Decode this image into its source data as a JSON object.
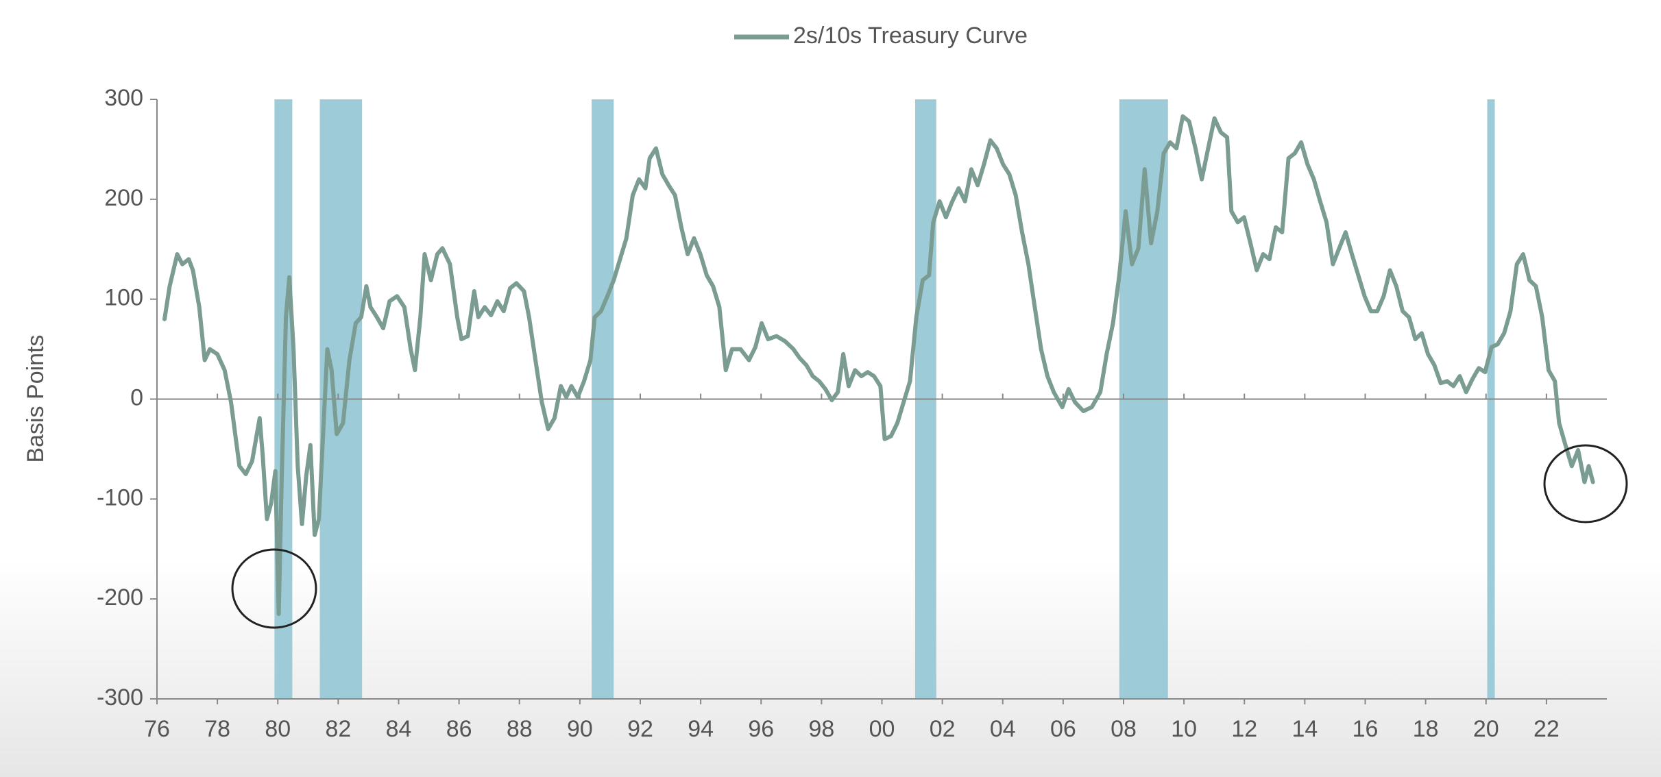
{
  "chart_data": {
    "type": "line",
    "y_label": "Basis Points",
    "xlim": [
      1976,
      2024
    ],
    "ylim": [
      -300,
      300
    ],
    "xticks": [
      {
        "value": 1976,
        "label": "76"
      },
      {
        "value": 1978,
        "label": "78"
      },
      {
        "value": 1980,
        "label": "80"
      },
      {
        "value": 1982,
        "label": "82"
      },
      {
        "value": 1984,
        "label": "84"
      },
      {
        "value": 1986,
        "label": "86"
      },
      {
        "value": 1988,
        "label": "88"
      },
      {
        "value": 1990,
        "label": "90"
      },
      {
        "value": 1992,
        "label": "92"
      },
      {
        "value": 1994,
        "label": "94"
      },
      {
        "value": 1996,
        "label": "96"
      },
      {
        "value": 1998,
        "label": "98"
      },
      {
        "value": 2000,
        "label": "00"
      },
      {
        "value": 2002,
        "label": "02"
      },
      {
        "value": 2004,
        "label": "04"
      },
      {
        "value": 2006,
        "label": "06"
      },
      {
        "value": 2008,
        "label": "08"
      },
      {
        "value": 2010,
        "label": "10"
      },
      {
        "value": 2012,
        "label": "12"
      },
      {
        "value": 2014,
        "label": "14"
      },
      {
        "value": 2016,
        "label": "16"
      },
      {
        "value": 2018,
        "label": "18"
      },
      {
        "value": 2020,
        "label": "20"
      },
      {
        "value": 2022,
        "label": "22"
      }
    ],
    "yticks": [
      300,
      200,
      100,
      0,
      -100,
      -200,
      -300
    ],
    "shaded_regions": [
      [
        1979.89,
        1980.48
      ],
      [
        1981.39,
        1982.79
      ],
      [
        1990.39,
        1991.12
      ],
      [
        2001.1,
        2001.8
      ],
      [
        2007.86,
        2009.47
      ],
      [
        2020.04,
        2020.29
      ]
    ],
    "shade_color": "#9dcbd7",
    "legend": "top",
    "x": [
      1976.25,
      1976.42,
      1976.67,
      1976.84,
      1977.05,
      1977.19,
      1977.4,
      1977.58,
      1977.75,
      1978.0,
      1978.24,
      1978.45,
      1978.59,
      1978.73,
      1978.94,
      1979.15,
      1979.4,
      1979.5,
      1979.64,
      1979.78,
      1979.92,
      1980.03,
      1980.13,
      1980.27,
      1980.38,
      1980.52,
      1980.66,
      1980.8,
      1980.94,
      1981.08,
      1981.22,
      1981.36,
      1981.5,
      1981.64,
      1981.78,
      1981.95,
      1982.16,
      1982.37,
      1982.58,
      1982.76,
      1982.93,
      1983.07,
      1983.28,
      1983.49,
      1983.7,
      1983.95,
      1984.19,
      1984.4,
      1984.54,
      1984.72,
      1984.86,
      1985.07,
      1985.28,
      1985.45,
      1985.7,
      1985.94,
      1986.08,
      1986.29,
      1986.5,
      1986.64,
      1986.85,
      1987.06,
      1987.27,
      1987.48,
      1987.69,
      1987.9,
      1988.15,
      1988.32,
      1988.53,
      1988.74,
      1988.95,
      1989.16,
      1989.37,
      1989.55,
      1989.72,
      1989.93,
      1990.14,
      1990.35,
      1990.49,
      1990.7,
      1990.91,
      1991.12,
      1991.33,
      1991.54,
      1991.75,
      1991.96,
      1992.17,
      1992.31,
      1992.52,
      1992.73,
      1992.94,
      1993.15,
      1993.36,
      1993.57,
      1993.78,
      1993.99,
      1994.2,
      1994.41,
      1994.62,
      1994.83,
      1995.04,
      1995.32,
      1995.6,
      1995.81,
      1996.02,
      1996.23,
      1996.51,
      1996.79,
      1997.07,
      1997.28,
      1997.5,
      1997.71,
      1997.92,
      1998.13,
      1998.34,
      1998.54,
      1998.72,
      1998.9,
      1999.11,
      1999.32,
      1999.53,
      1999.74,
      1999.95,
      2000.09,
      2000.3,
      2000.51,
      2000.72,
      2000.93,
      2001.14,
      2001.35,
      2001.56,
      2001.7,
      2001.91,
      2002.12,
      2002.33,
      2002.54,
      2002.75,
      2002.96,
      2003.17,
      2003.38,
      2003.59,
      2003.8,
      2004.01,
      2004.22,
      2004.43,
      2004.64,
      2004.85,
      2005.06,
      2005.27,
      2005.48,
      2005.69,
      2005.97,
      2006.18,
      2006.39,
      2006.67,
      2006.95,
      2007.23,
      2007.44,
      2007.65,
      2007.86,
      2008.07,
      2008.28,
      2008.49,
      2008.7,
      2008.91,
      2009.12,
      2009.33,
      2009.54,
      2009.75,
      2009.96,
      2010.17,
      2010.38,
      2010.59,
      2010.8,
      2011.01,
      2011.22,
      2011.43,
      2011.57,
      2011.78,
      2011.99,
      2012.2,
      2012.41,
      2012.62,
      2012.83,
      2013.04,
      2013.25,
      2013.46,
      2013.67,
      2013.88,
      2014.09,
      2014.3,
      2014.51,
      2014.72,
      2014.93,
      2015.14,
      2015.35,
      2015.56,
      2015.77,
      2015.98,
      2016.19,
      2016.4,
      2016.61,
      2016.82,
      2017.03,
      2017.24,
      2017.45,
      2017.66,
      2017.87,
      2018.08,
      2018.29,
      2018.5,
      2018.71,
      2018.92,
      2019.13,
      2019.34,
      2019.55,
      2019.76,
      2019.97,
      2020.18,
      2020.39,
      2020.6,
      2020.81,
      2021.02,
      2021.23,
      2021.44,
      2021.65,
      2021.86,
      2022.07,
      2022.28,
      2022.42,
      2022.63,
      2022.84,
      2023.05,
      2023.26,
      2023.4,
      2023.54
    ],
    "series": [
      {
        "name": "2s/10s Treasury Curve",
        "color": "#7a9c93",
        "values": [
          80,
          113,
          145,
          135,
          140,
          129,
          92,
          39,
          50,
          45,
          29,
          -3,
          -35,
          -67,
          -75,
          -62,
          -19,
          -56,
          -120,
          -104,
          -72,
          -215,
          -77,
          82,
          122,
          50,
          -67,
          -125,
          -77,
          -46,
          -136,
          -120,
          -35,
          50,
          29,
          -35,
          -24,
          39,
          76,
          82,
          113,
          92,
          82,
          71,
          98,
          103,
          92,
          50,
          29,
          82,
          145,
          119,
          145,
          151,
          135,
          82,
          60,
          63,
          108,
          82,
          92,
          84,
          98,
          88,
          111,
          116,
          108,
          82,
          39,
          -3,
          -30,
          -19,
          13,
          2,
          13,
          2,
          18,
          39,
          82,
          88,
          103,
          119,
          140,
          161,
          204,
          220,
          211,
          241,
          251,
          225,
          214,
          204,
          172,
          145,
          161,
          145,
          124,
          113,
          92,
          29,
          50,
          50,
          39,
          52,
          76,
          60,
          63,
          58,
          50,
          41,
          34,
          23,
          18,
          10,
          -1,
          7,
          45,
          13,
          29,
          23,
          27,
          23,
          13,
          -40,
          -37,
          -24,
          -3,
          18,
          82,
          119,
          124,
          177,
          198,
          182,
          198,
          211,
          198,
          230,
          214,
          235,
          259,
          251,
          235,
          225,
          204,
          167,
          135,
          92,
          50,
          23,
          7,
          -8,
          10,
          -3,
          -12,
          -8,
          7,
          45,
          76,
          124,
          188,
          135,
          151,
          230,
          156,
          188,
          246,
          257,
          251,
          283,
          278,
          251,
          220,
          251,
          281,
          267,
          262,
          188,
          177,
          182,
          156,
          129,
          145,
          140,
          172,
          167,
          241,
          246,
          257,
          235,
          220,
          198,
          177,
          135,
          151,
          167,
          145,
          124,
          103,
          88,
          88,
          103,
          129,
          113,
          88,
          82,
          60,
          66,
          45,
          34,
          16,
          18,
          13,
          23,
          7,
          20,
          31,
          27,
          52,
          55,
          66,
          88,
          135,
          145,
          119,
          113,
          82,
          29,
          18,
          -24,
          -46,
          -67,
          -51,
          -83,
          -67,
          -83
        ]
      }
    ]
  }
}
